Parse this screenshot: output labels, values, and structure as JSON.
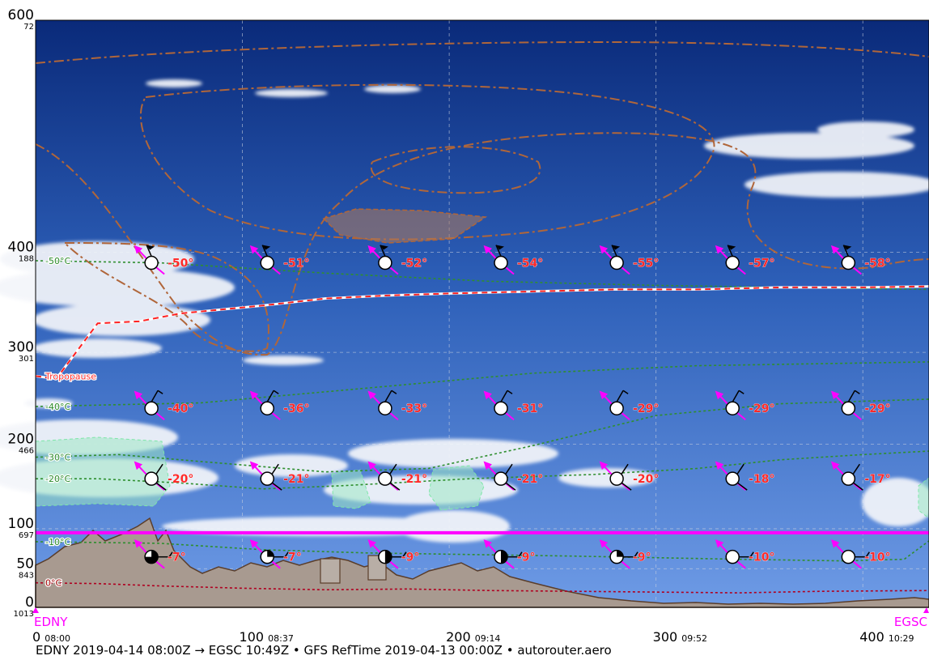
{
  "chart_data": {
    "type": "vertical-profile",
    "footer": "EDNY 2019-04-14 08:00Z → EGSC 10:49Z • GFS RefTime 2019-04-13 00:00Z • autorouter.aero",
    "departure": "EDNY",
    "destination": "EGSC",
    "xlim": [
      0,
      432
    ],
    "y_axis": {
      "scale": "log-pressure",
      "ticks": [
        {
          "fl": "600",
          "hpa": "72"
        },
        {
          "fl": "400",
          "hpa": "188"
        },
        {
          "fl": "300",
          "hpa": "301"
        },
        {
          "fl": "200",
          "hpa": "466"
        },
        {
          "fl": "100",
          "hpa": "697"
        },
        {
          "fl": "50",
          "hpa": "843"
        },
        {
          "fl": "0",
          "hpa": "1013"
        }
      ]
    },
    "x_ticks": [
      {
        "nm": "0",
        "time": "08:00",
        "x": 0
      },
      {
        "nm": "100",
        "time": "08:37",
        "x": 100
      },
      {
        "nm": "200",
        "time": "09:14",
        "x": 200
      },
      {
        "nm": "300",
        "time": "09:52",
        "x": 300
      },
      {
        "nm": "400",
        "time": "10:29",
        "x": 400
      }
    ],
    "cruise_level_fl": 95,
    "wind_stations_x": [
      56,
      112,
      169,
      225,
      281,
      337,
      393
    ],
    "temperature_levels": [
      {
        "fl": 390,
        "values": [
          "-50°",
          "-51°",
          "-52°",
          "-54°",
          "-55°",
          "-57°",
          "-58°"
        ]
      },
      {
        "fl": 240,
        "values": [
          "-40°",
          "-36°",
          "-33°",
          "-31°",
          "-29°",
          "-29°",
          "-29°"
        ]
      },
      {
        "fl": 160,
        "values": [
          "-20°",
          "-21°",
          "-21°",
          "-21°",
          "-20°",
          "-18°",
          "-17°"
        ]
      },
      {
        "fl": 65,
        "values": [
          "-7°",
          "-7°",
          "-9°",
          "-9°",
          "-9°",
          "-10°",
          "-10°"
        ]
      }
    ],
    "isotherms": [
      {
        "label": "-50°C",
        "points": [
          [
            0,
            392
          ],
          [
            60,
            390
          ],
          [
            140,
            380
          ],
          [
            220,
            372
          ],
          [
            300,
            368
          ],
          [
            432,
            364
          ]
        ]
      },
      {
        "label": "-40°C",
        "points": [
          [
            0,
            242
          ],
          [
            80,
            246
          ],
          [
            160,
            262
          ],
          [
            240,
            278
          ],
          [
            320,
            286
          ],
          [
            432,
            290
          ]
        ]
      },
      {
        "label": "-30°C",
        "points": [
          [
            0,
            185
          ],
          [
            40,
            188
          ],
          [
            80,
            180
          ],
          [
            140,
            168
          ],
          [
            190,
            172
          ],
          [
            240,
            198
          ],
          [
            300,
            232
          ],
          [
            360,
            245
          ],
          [
            432,
            250
          ]
        ]
      },
      {
        "label": "-20°C",
        "points": [
          [
            0,
            160
          ],
          [
            30,
            160
          ],
          [
            70,
            155
          ],
          [
            110,
            148
          ],
          [
            150,
            152
          ],
          [
            210,
            160
          ],
          [
            270,
            165
          ],
          [
            320,
            172
          ],
          [
            360,
            182
          ],
          [
            400,
            188
          ],
          [
            432,
            192
          ]
        ]
      },
      {
        "label": "-10°C",
        "points": [
          [
            0,
            84
          ],
          [
            60,
            82
          ],
          [
            110,
            74
          ],
          [
            160,
            70
          ],
          [
            210,
            68
          ],
          [
            260,
            66
          ],
          [
            300,
            64
          ],
          [
            340,
            62
          ],
          [
            390,
            60
          ],
          [
            420,
            62
          ],
          [
            432,
            85
          ]
        ]
      },
      {
        "label": "0°C",
        "points": [
          [
            0,
            32
          ],
          [
            30,
            31
          ],
          [
            60,
            28
          ],
          [
            100,
            25
          ],
          [
            140,
            23
          ],
          [
            180,
            24
          ],
          [
            220,
            22
          ],
          [
            260,
            21
          ],
          [
            300,
            20
          ],
          [
            340,
            19
          ],
          [
            380,
            21
          ],
          [
            432,
            22
          ]
        ]
      }
    ],
    "tropopause": {
      "label": "Tropopause",
      "points": [
        [
          0,
          275
        ],
        [
          10,
          272
        ],
        [
          30,
          330
        ],
        [
          50,
          332
        ],
        [
          70,
          340
        ],
        [
          110,
          348
        ],
        [
          140,
          355
        ],
        [
          170,
          358
        ],
        [
          200,
          360
        ],
        [
          240,
          362
        ],
        [
          280,
          364
        ],
        [
          320,
          364
        ],
        [
          360,
          366
        ],
        [
          400,
          366
        ],
        [
          432,
          367
        ]
      ]
    }
  }
}
